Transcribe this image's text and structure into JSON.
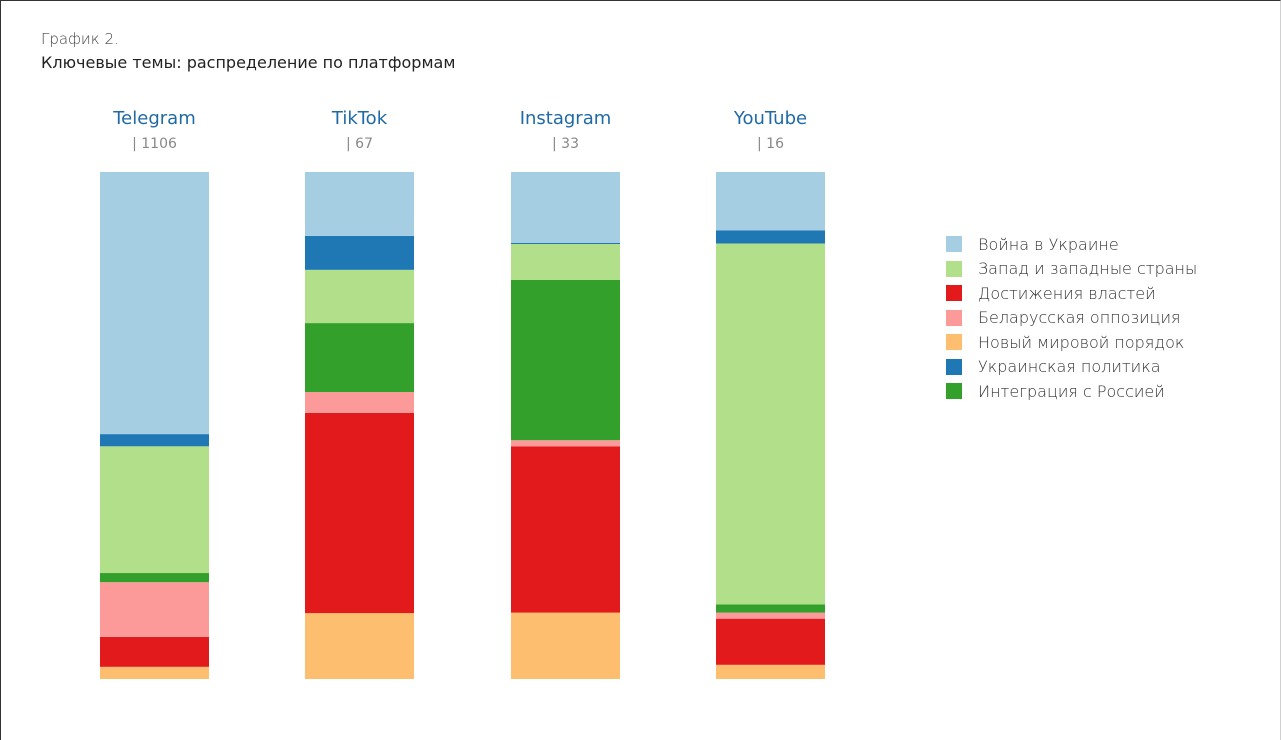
{
  "chart_data": {
    "type": "bar",
    "stacked": true,
    "normalized": true,
    "title_prefix": "График 2.",
    "title": "Ключевые темы: распределение по платформам",
    "categories": [
      "Telegram",
      "TikTok",
      "Instagram",
      "YouTube"
    ],
    "totals": [
      "| 1106",
      "| 67",
      "| 33",
      "| 16"
    ],
    "series": [
      {
        "name": "Новый мировой порядок",
        "color": "#fdbf6f",
        "values": [
          2.4,
          13.0,
          13.1,
          2.8
        ]
      },
      {
        "name": "Достижения властей",
        "color": "#e31a1c",
        "values": [
          5.9,
          39.5,
          32.8,
          9.1
        ]
      },
      {
        "name": "Беларусская оппозиция",
        "color": "#fb9a99",
        "values": [
          10.8,
          4.1,
          1.2,
          1.2
        ]
      },
      {
        "name": "Интеграция с Россией",
        "color": "#33a02c",
        "values": [
          1.8,
          13.6,
          31.6,
          1.6
        ]
      },
      {
        "name": "Запад и западные страны",
        "color": "#b2df8a",
        "values": [
          25.0,
          10.5,
          7.1,
          71.2
        ]
      },
      {
        "name": "Украинская политика",
        "color": "#1f78b4",
        "values": [
          2.4,
          6.7,
          0.2,
          2.6
        ]
      },
      {
        "name": "Война в Украине",
        "color": "#a6cee3",
        "values": [
          51.7,
          12.6,
          14.0,
          11.5
        ]
      }
    ],
    "legend_order": [
      "Война в Украине",
      "Запад и западные страны",
      "Достижения властей",
      "Беларусская оппозиция",
      "Новый мировой порядок",
      "Украинская политика",
      "Интеграция с Россией"
    ],
    "legend_position": "right",
    "category_label_color": "#1f6aa5",
    "total_label_color": "#888888",
    "grid": false,
    "ylim": [
      0,
      100
    ]
  }
}
